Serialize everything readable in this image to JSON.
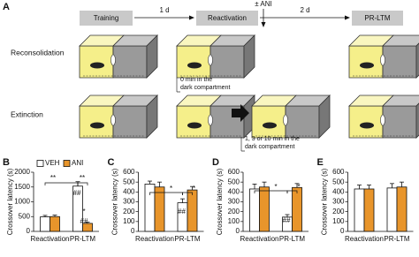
{
  "diagram": {
    "panel": "A",
    "steps": [
      "Training",
      "Reactivation",
      "PR-LTM"
    ],
    "intervals": [
      "1 d",
      "2 d"
    ],
    "treatment": "± ANI",
    "rows": [
      "Reconsolidation",
      "Extinction"
    ],
    "notes": [
      [
        "0 min in the",
        "dark compartment"
      ],
      [
        "1, 3 or 10 min in the",
        "dark compartment"
      ]
    ]
  },
  "chart_data": [
    {
      "type": "bar",
      "panel": "B",
      "y_label": "Crossover latency (s)",
      "categories": [
        "Reactivation",
        "PR-LTM"
      ],
      "series": [
        {
          "name": "VEH",
          "color": "#ffffff",
          "values": [
            490,
            1530
          ],
          "errors": [
            50,
            150
          ]
        },
        {
          "name": "ANI",
          "color": "#e8952b",
          "values": [
            500,
            270
          ],
          "errors": [
            50,
            40
          ]
        }
      ],
      "ylim": [
        0,
        2000
      ],
      "yticks": [
        0,
        500,
        1000,
        1500,
        2000
      ],
      "legend": "top-left",
      "annotations": [
        "**",
        "**",
        "##",
        "*",
        "##"
      ]
    },
    {
      "type": "bar",
      "panel": "C",
      "y_label": "Crossover latency (s)",
      "categories": [
        "Reactivation",
        "PR-LTM"
      ],
      "series": [
        {
          "color": "#ffffff",
          "values": [
            480,
            290
          ],
          "errors": [
            30,
            40
          ]
        },
        {
          "color": "#e8952b",
          "values": [
            450,
            420
          ],
          "errors": [
            50,
            35
          ]
        }
      ],
      "ylim": [
        0,
        600
      ],
      "yticks": [
        0,
        100,
        200,
        300,
        400,
        500,
        600
      ],
      "annotations": [
        "*",
        "*",
        "##"
      ]
    },
    {
      "type": "bar",
      "panel": "D",
      "y_label": "Crossover latency (s)",
      "categories": [
        "Reactivation",
        "PR-LTM"
      ],
      "series": [
        {
          "color": "#ffffff",
          "values": [
            430,
            145
          ],
          "errors": [
            50,
            25
          ]
        },
        {
          "color": "#e8952b",
          "values": [
            450,
            445
          ],
          "errors": [
            50,
            40
          ]
        }
      ],
      "ylim": [
        0,
        600
      ],
      "yticks": [
        0,
        100,
        200,
        300,
        400,
        500,
        600
      ],
      "annotations": [
        "*",
        "*",
        "##"
      ]
    },
    {
      "type": "bar",
      "panel": "E",
      "y_label": "Crossover latency (s)",
      "categories": [
        "Reactivation",
        "PR-LTM"
      ],
      "series": [
        {
          "color": "#ffffff",
          "values": [
            430,
            440
          ],
          "errors": [
            40,
            45
          ]
        },
        {
          "color": "#e8952b",
          "values": [
            430,
            450
          ],
          "errors": [
            40,
            50
          ]
        }
      ],
      "ylim": [
        0,
        600
      ],
      "yticks": [
        0,
        100,
        200,
        300,
        400,
        500,
        600
      ],
      "annotations": []
    }
  ]
}
